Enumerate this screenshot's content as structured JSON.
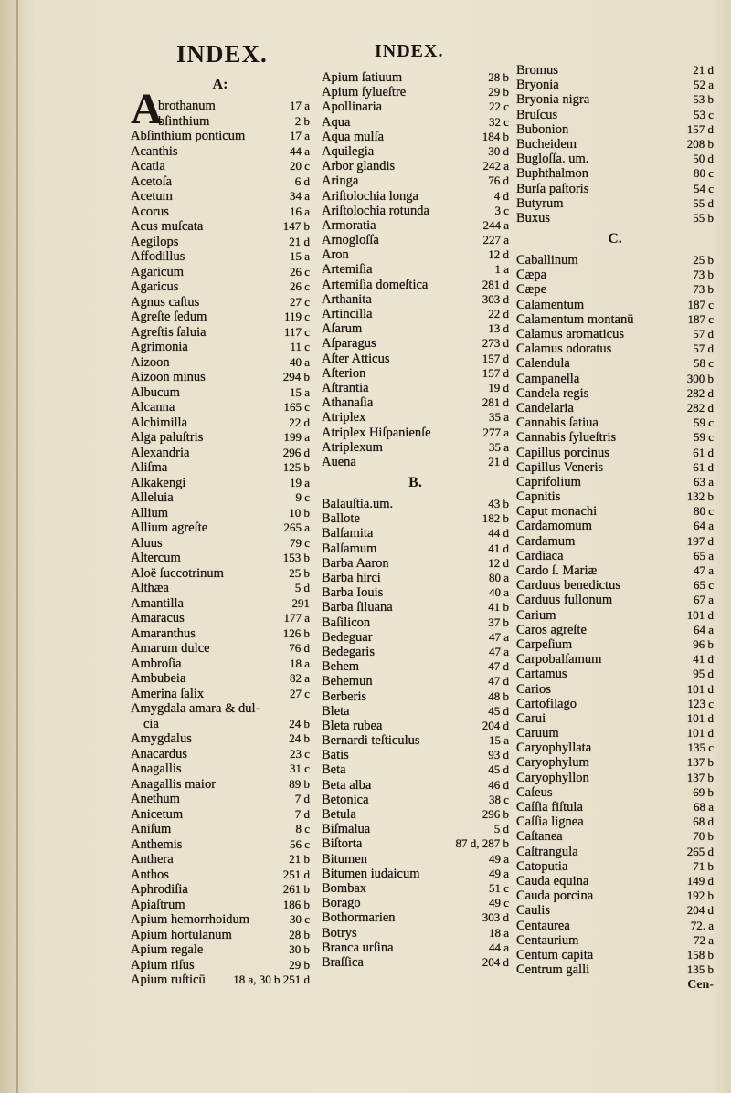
{
  "headers": [
    "INDEX.",
    "INDEX."
  ],
  "drop_cap": "A",
  "catchword": "Cen-",
  "columns": [
    [
      {
        "heading": "A:",
        "entries": [
          {
            "term": "brothanum",
            "ref": "17 a"
          },
          {
            "term": "bſinthium",
            "ref": "2 b"
          },
          {
            "term": "Abſinthium ponticum",
            "ref": "17 a"
          },
          {
            "term": "Acanthis",
            "ref": "44 a"
          },
          {
            "term": "Acatia",
            "ref": "20 c"
          },
          {
            "term": "Acetoſa",
            "ref": "6 d"
          },
          {
            "term": "Acetum",
            "ref": "34 a"
          },
          {
            "term": "Acorus",
            "ref": "16 a"
          },
          {
            "term": "Acus muſcata",
            "ref": "147 b"
          },
          {
            "term": "Aegilops",
            "ref": "21 d"
          },
          {
            "term": "Affodillus",
            "ref": "15 a"
          },
          {
            "term": "Agaricum",
            "ref": "26 c"
          },
          {
            "term": "Agaricus",
            "ref": "26 c"
          },
          {
            "term": "Agnus caſtus",
            "ref": "27 c"
          },
          {
            "term": "Agreſte ſedum",
            "ref": "119 c"
          },
          {
            "term": "Agreſtis ſaluia",
            "ref": "117 c"
          },
          {
            "term": "Agrimonia",
            "ref": "11 c"
          },
          {
            "term": "Aizoon",
            "ref": "40 a"
          },
          {
            "term": "Aizoon minus",
            "ref": "294 b"
          },
          {
            "term": "Albucum",
            "ref": "15 a"
          },
          {
            "term": "Alcanna",
            "ref": "165 c"
          },
          {
            "term": "Alchimilla",
            "ref": "22 d"
          },
          {
            "term": "Alga paluſtris",
            "ref": "199 a"
          },
          {
            "term": "Alexandria",
            "ref": "296 d"
          },
          {
            "term": "Aliſma",
            "ref": "125 b"
          },
          {
            "term": "Alkakengi",
            "ref": "19 a"
          },
          {
            "term": "Alleluia",
            "ref": "9 c"
          },
          {
            "term": "Allium",
            "ref": "10 b"
          },
          {
            "term": "Allium agreſte",
            "ref": "265 a"
          },
          {
            "term": "Aluus",
            "ref": "79 c"
          },
          {
            "term": "Altercum",
            "ref": "153 b"
          },
          {
            "term": "Aloë ſuccotrinum",
            "ref": "25 b"
          },
          {
            "term": "Althæa",
            "ref": "5 d"
          },
          {
            "term": "Amantilla",
            "ref": "291"
          },
          {
            "term": "Amaracus",
            "ref": "177 a"
          },
          {
            "term": "Amaranthus",
            "ref": "126 b"
          },
          {
            "term": "Amarum dulce",
            "ref": "76 d"
          },
          {
            "term": "Ambroſia",
            "ref": "18 a"
          },
          {
            "term": "Ambubeia",
            "ref": "82 a"
          },
          {
            "term": "Amerina ſalix",
            "ref": "27 c"
          },
          {
            "term": "Amygdala amara & dul-",
            "cont": "cia",
            "ref": "24 b"
          },
          {
            "term": "Amygdalus",
            "ref": "24 b"
          },
          {
            "term": "Anacardus",
            "ref": "23 c"
          },
          {
            "term": "Anagallis",
            "ref": "31 c"
          },
          {
            "term": "Anagallis maior",
            "ref": "89 b"
          },
          {
            "term": "Anethum",
            "ref": "7 d"
          },
          {
            "term": "Anicetum",
            "ref": "7 d"
          },
          {
            "term": "Aniſum",
            "ref": "8 c"
          },
          {
            "term": "Anthemis",
            "ref": "56 c"
          },
          {
            "term": "Anthera",
            "ref": "21 b"
          },
          {
            "term": "Anthos",
            "ref": "251 d"
          },
          {
            "term": "Aphrodiſia",
            "ref": "261 b"
          },
          {
            "term": "Apiaſtrum",
            "ref": "186 b"
          },
          {
            "term": "Apium hemorrhoidum",
            "ref": "30 c"
          },
          {
            "term": "Apium hortulanum",
            "ref": "28 b"
          },
          {
            "term": "Apium regale",
            "ref": "30 b"
          },
          {
            "term": "Apium riſus",
            "ref": "29 b"
          },
          {
            "term": "Apium ruſticū",
            "ref": "18 a, 30 b 251 d"
          }
        ]
      }
    ],
    [
      {
        "heading": "",
        "entries": [
          {
            "term": "Apium ſatiuum",
            "ref": "28 b"
          },
          {
            "term": "Apium ſylueſtre",
            "ref": "29 b"
          },
          {
            "term": "Apollinaria",
            "ref": "22 c"
          },
          {
            "term": "Aqua",
            "ref": "32 c"
          },
          {
            "term": "Aqua mulſa",
            "ref": "184 b"
          },
          {
            "term": "Aquilegia",
            "ref": "30 d"
          },
          {
            "term": "Arbor glandis",
            "ref": "242 a"
          },
          {
            "term": "Aringa",
            "ref": "76 d"
          },
          {
            "term": "Ariſtolochia longa",
            "ref": "4 d"
          },
          {
            "term": "Ariſtolochia rotunda",
            "ref": "3 c"
          },
          {
            "term": "Armoratia",
            "ref": "244 a"
          },
          {
            "term": "Arnogloſſa",
            "ref": "227 a"
          },
          {
            "term": "Aron",
            "ref": "12 d"
          },
          {
            "term": "Artemiſia",
            "ref": "1 a"
          },
          {
            "term": "Artemiſia domeſtica",
            "ref": "281 d"
          },
          {
            "term": "Arthanita",
            "ref": "303 d"
          },
          {
            "term": "Artincilla",
            "ref": "22 d"
          },
          {
            "term": "Aſarum",
            "ref": "13 d"
          },
          {
            "term": "Aſparagus",
            "ref": "273 d"
          },
          {
            "term": "Aſter Atticus",
            "ref": "157 d"
          },
          {
            "term": "Aſterion",
            "ref": "157 d"
          },
          {
            "term": "Aſtrantia",
            "ref": "19 d"
          },
          {
            "term": "Athanaſia",
            "ref": "281 d"
          },
          {
            "term": "Atriplex",
            "ref": "35 a"
          },
          {
            "term": "Atriplex Hiſpanienſe",
            "ref": "277 a"
          },
          {
            "term": "Atriplexum",
            "ref": "35 a"
          },
          {
            "term": "Auena",
            "ref": "21 d"
          }
        ]
      },
      {
        "heading": "B.",
        "entries": [
          {
            "term": "Balauſtia.um.",
            "ref": "43 b"
          },
          {
            "term": "Ballote",
            "ref": "182 b"
          },
          {
            "term": "Balſamita",
            "ref": "44 d"
          },
          {
            "term": "Balſamum",
            "ref": "41 d"
          },
          {
            "term": "Barba Aaron",
            "ref": "12 d"
          },
          {
            "term": "Barba hirci",
            "ref": "80 a"
          },
          {
            "term": "Barba Iouis",
            "ref": "40 a"
          },
          {
            "term": "Barba ſiluana",
            "ref": "41 b"
          },
          {
            "term": "Baſilicon",
            "ref": "37 b"
          },
          {
            "term": "Bedeguar",
            "ref": "47 a"
          },
          {
            "term": "Bedegaris",
            "ref": "47 a"
          },
          {
            "term": "Behem",
            "ref": "47 d"
          },
          {
            "term": "Behemun",
            "ref": "47 d"
          },
          {
            "term": "Berberis",
            "ref": "48 b"
          },
          {
            "term": "Bleta",
            "ref": "45 d"
          },
          {
            "term": "Bleta rubea",
            "ref": "204 d"
          },
          {
            "term": "Bernardi teſticulus",
            "ref": "15 a"
          },
          {
            "term": "Batis",
            "ref": "93 d"
          },
          {
            "term": "Beta",
            "ref": "45 d"
          },
          {
            "term": "Beta alba",
            "ref": "46 d"
          },
          {
            "term": "Betonica",
            "ref": "38 c"
          },
          {
            "term": "Betula",
            "ref": "296 b"
          },
          {
            "term": "Biſmalua",
            "ref": "5 d"
          },
          {
            "term": "Biſtorta",
            "ref": "87 d, 287 b"
          },
          {
            "term": "Bitumen",
            "ref": "49 a"
          },
          {
            "term": "Bitumen iudaicum",
            "ref": "49 a"
          },
          {
            "term": "Bombax",
            "ref": "51 c"
          },
          {
            "term": "Borago",
            "ref": "49 c"
          },
          {
            "term": "Bothormarien",
            "ref": "303 d"
          },
          {
            "term": "Botrys",
            "ref": "18 a"
          },
          {
            "term": "Branca urſina",
            "ref": "44 a"
          },
          {
            "term": "Braſſica",
            "ref": "204 d"
          }
        ]
      }
    ],
    [
      {
        "heading": "",
        "entries": [
          {
            "term": "Bromus",
            "ref": "21 d"
          },
          {
            "term": "Bryonia",
            "ref": "52 a"
          },
          {
            "term": "Bryonia nigra",
            "ref": "53 b"
          },
          {
            "term": "Bruſcus",
            "ref": "53 c"
          },
          {
            "term": "Bubonion",
            "ref": "157 d"
          },
          {
            "term": "Bucheidem",
            "ref": "208 b"
          },
          {
            "term": "Bugloſſa. um.",
            "ref": "50 d"
          },
          {
            "term": "Buphthalmon",
            "ref": "80 c"
          },
          {
            "term": "Burſa paſtoris",
            "ref": "54 c"
          },
          {
            "term": "Butyrum",
            "ref": "55 d"
          },
          {
            "term": "Buxus",
            "ref": "55 b"
          }
        ]
      },
      {
        "heading": "C.",
        "entries": [
          {
            "term": "Caballinum",
            "ref": "25 b"
          },
          {
            "term": "Cæpa",
            "ref": "73 b"
          },
          {
            "term": "Cæpe",
            "ref": "73 b"
          },
          {
            "term": "Calamentum",
            "ref": "187 c"
          },
          {
            "term": "Calamentum montanū",
            "ref": "187 c"
          },
          {
            "term": "Calamus aromaticus",
            "ref": "57 d"
          },
          {
            "term": "Calamus odoratus",
            "ref": "57 d"
          },
          {
            "term": "Calendula",
            "ref": "58 c"
          },
          {
            "term": "Campanella",
            "ref": "300 b"
          },
          {
            "term": "Candela regis",
            "ref": "282 d"
          },
          {
            "term": "Candelaria",
            "ref": "282 d"
          },
          {
            "term": "Cannabis ſatiua",
            "ref": "59 c"
          },
          {
            "term": "Cannabis ſylueſtris",
            "ref": "59 c"
          },
          {
            "term": "Capillus porcinus",
            "ref": "61 d"
          },
          {
            "term": "Capillus Veneris",
            "ref": "61 d"
          },
          {
            "term": "Caprifolium",
            "ref": "63 a"
          },
          {
            "term": "Capnitis",
            "ref": "132 b"
          },
          {
            "term": "Caput monachi",
            "ref": "80 c"
          },
          {
            "term": "Cardamomum",
            "ref": "64 a"
          },
          {
            "term": "Cardamum",
            "ref": "197 d"
          },
          {
            "term": "Cardiaca",
            "ref": "65 a"
          },
          {
            "term": "Cardo ſ. Mariæ",
            "ref": "47 a"
          },
          {
            "term": "Carduus benedictus",
            "ref": "65 c"
          },
          {
            "term": "Carduus fullonum",
            "ref": "67 a"
          },
          {
            "term": "Carium",
            "ref": "101 d"
          },
          {
            "term": "Caros agreſte",
            "ref": "64 a"
          },
          {
            "term": "Carpeſium",
            "ref": "96 b"
          },
          {
            "term": "Carpobalſamum",
            "ref": "41 d"
          },
          {
            "term": "Cartamus",
            "ref": "95 d"
          },
          {
            "term": "Carios",
            "ref": "101 d"
          },
          {
            "term": "Cartofilago",
            "ref": "123 c"
          },
          {
            "term": "Carui",
            "ref": "101 d"
          },
          {
            "term": "Caruum",
            "ref": "101 d"
          },
          {
            "term": "Caryophyllata",
            "ref": "135 c"
          },
          {
            "term": "Caryophylum",
            "ref": "137 b"
          },
          {
            "term": "Caryophyllon",
            "ref": "137 b"
          },
          {
            "term": "Caſeus",
            "ref": "69 b"
          },
          {
            "term": "Caſſia fiſtula",
            "ref": "68 a"
          },
          {
            "term": "Caſſia lignea",
            "ref": "68 d"
          },
          {
            "term": "Caſtanea",
            "ref": "70 b"
          },
          {
            "term": "Caſtrangula",
            "ref": "265 d"
          },
          {
            "term": "Catoputia",
            "ref": "71 b"
          },
          {
            "term": "Cauda equina",
            "ref": "149 d"
          },
          {
            "term": "Cauda porcina",
            "ref": "192 b"
          },
          {
            "term": "Caulis",
            "ref": "204 d"
          },
          {
            "term": "Centaurea",
            "ref": "72. a"
          },
          {
            "term": "Centaurium",
            "ref": "72 a"
          },
          {
            "term": "Centum capita",
            "ref": "158 b"
          },
          {
            "term": "Centrum galli",
            "ref": "135 b"
          }
        ]
      }
    ]
  ]
}
